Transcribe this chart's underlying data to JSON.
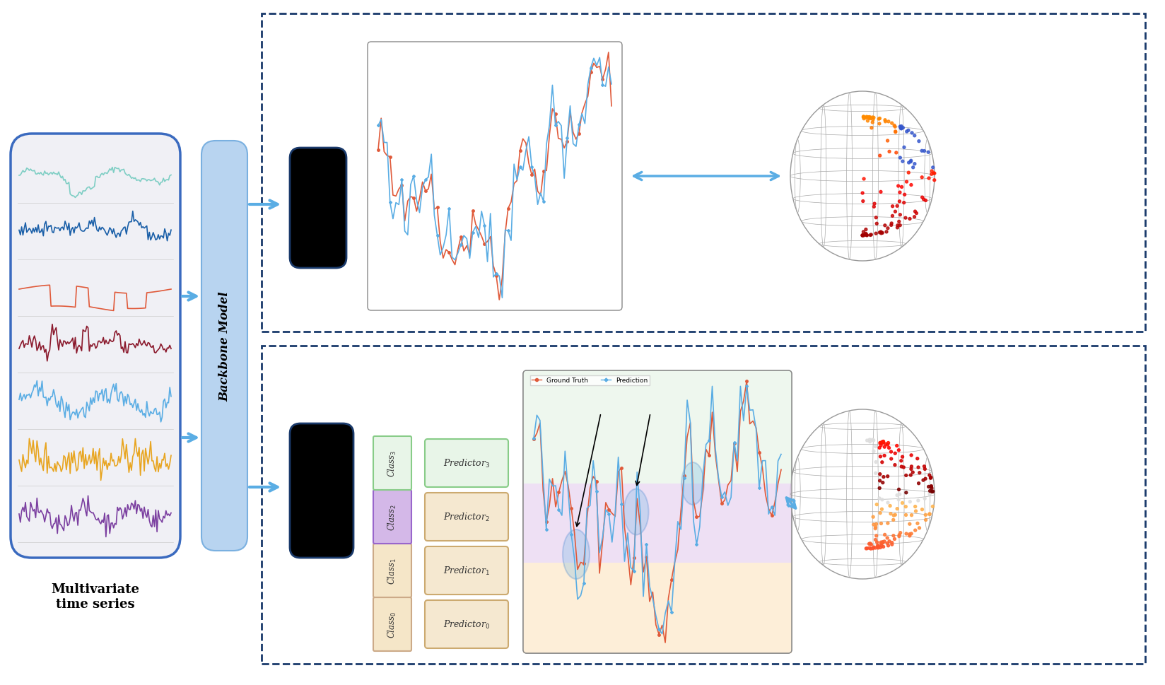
{
  "bg_color": "#ffffff",
  "title": "",
  "ts_colors": [
    "#7ecec4",
    "#1a5fa8",
    "#e05a3a",
    "#8b1a2d",
    "#5aade4",
    "#e8a520",
    "#7b3fa0"
  ],
  "backbone_color": "#b8d4f0",
  "backbone_text": "Backbone Model",
  "ts_label": "Multivariate\ntime series",
  "box_top_color": "#1a3a6b",
  "class_colors": [
    "#f5e6c8",
    "#f5e6c8",
    "#d4b8e8",
    "#e8f5e8"
  ],
  "class_labels": [
    "Class$_0$",
    "Class$_1$",
    "Class$_2$",
    "Class$_3$"
  ],
  "predictor_colors": [
    "#f5e6c8",
    "#f5e6c8",
    "#f5e6c8",
    "#e8f5e8"
  ],
  "predictor_labels": [
    "Predictor$_0$",
    "Predictor$_1$",
    "Predictor$_2$",
    "Predictor$_3$"
  ],
  "arrow_color": "#5aade4",
  "dashed_border_color": "#1a3a6b",
  "globe_color": "#cccccc",
  "upper_chart_bg": "#ffffff",
  "lower_chart_bg_colors": [
    "#fde8c8",
    "#e8d4f0",
    "#e8f5e8"
  ],
  "gt_color": "#e05a3a",
  "pred_color": "#5aade4",
  "ellipse_color": "#5aade4"
}
